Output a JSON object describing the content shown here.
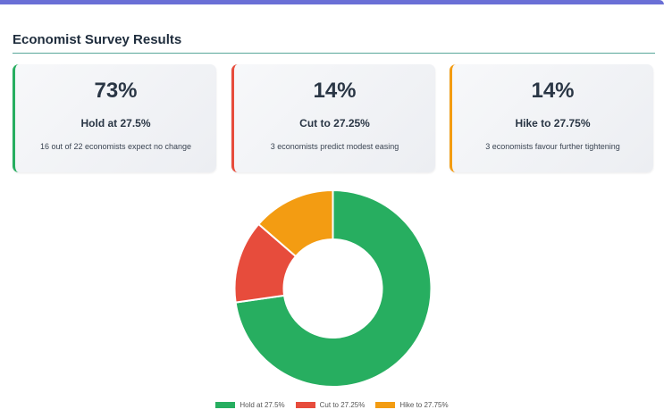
{
  "header": {
    "title": "Economist Survey Results"
  },
  "cards": [
    {
      "percent": "73%",
      "label": "Hold at 27.5%",
      "desc": "16 out of 22 economists expect no change",
      "color": "#27ae60"
    },
    {
      "percent": "14%",
      "label": "Cut to 27.25%",
      "desc": "3 economists predict modest easing",
      "color": "#e74c3c"
    },
    {
      "percent": "14%",
      "label": "Hike to 27.75%",
      "desc": "3 economists favour further tightening",
      "color": "#f39c12"
    }
  ],
  "chart_data": {
    "type": "pie",
    "donut": true,
    "legend_position": "bottom",
    "categories": [
      "Hold at 27.5%",
      "Cut to 27.25%",
      "Hike to 27.75%"
    ],
    "values": [
      16,
      3,
      3
    ],
    "colors": [
      "#27ae60",
      "#e74c3c",
      "#f39c12"
    ]
  }
}
